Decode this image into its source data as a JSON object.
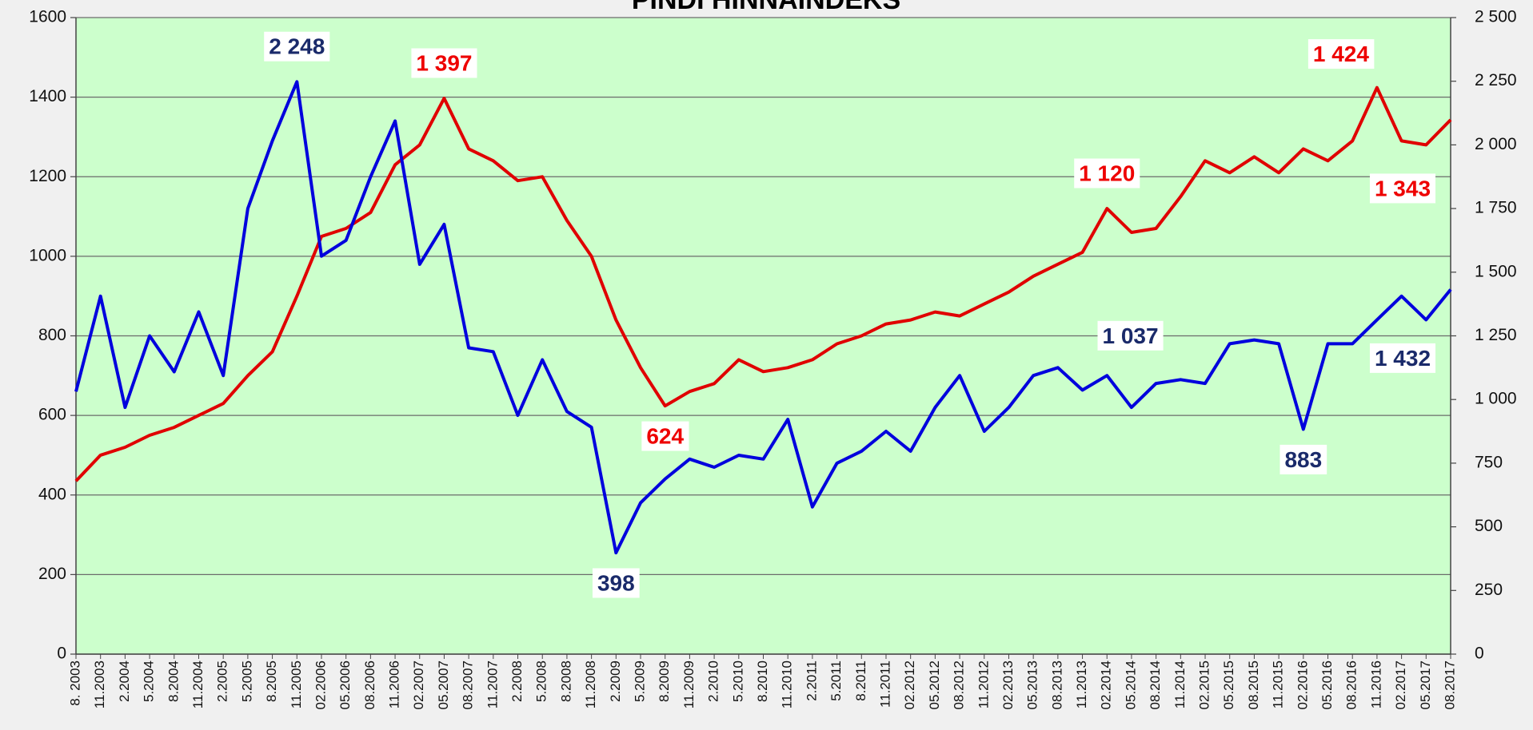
{
  "chart_data": {
    "type": "line",
    "title": "PINDI HINNAINDEKS",
    "categories": [
      "8. 2003",
      "11.2003",
      "2.2004",
      "5.2004",
      "8.2004",
      "11.2004",
      "2.2005",
      "5.2005",
      "8.2005",
      "11.2005",
      "02.2006",
      "05.2006",
      "08.2006",
      "11.2006",
      "02.2007",
      "05.2007",
      "08.2007",
      "11.2007",
      "2.2008",
      "5.2008",
      "8.2008",
      "11.2008",
      "2.2009",
      "5.2009",
      "8.2009",
      "11.2009",
      "2.2010",
      "5.2010",
      "8.2010",
      "11.2010",
      "2.2011",
      "5.2011",
      "8.2011",
      "11.2011",
      "02.2012",
      "05.2012",
      "08.2012",
      "11.2012",
      "02.2013",
      "05.2013",
      "08.2013",
      "11.2013",
      "02.2014",
      "05.2014",
      "08.2014",
      "11.2014",
      "02.2015",
      "05.2015",
      "08.2015",
      "11.2015",
      "02.2016",
      "05.2016",
      "08.2016",
      "11.2016",
      "02.2017",
      "05.2017",
      "08.2017"
    ],
    "series": [
      {
        "color": "#e00000",
        "axis": "y",
        "values": [
          435,
          500,
          520,
          550,
          570,
          600,
          630,
          700,
          760,
          900,
          1050,
          1070,
          1110,
          1230,
          1280,
          1397,
          1270,
          1240,
          1190,
          1200,
          1090,
          1000,
          840,
          720,
          624,
          660,
          680,
          740,
          710,
          720,
          740,
          780,
          800,
          830,
          840,
          860,
          850,
          880,
          910,
          950,
          980,
          1010,
          1120,
          1060,
          1070,
          1150,
          1240,
          1210,
          1250,
          1210,
          1270,
          1240,
          1290,
          1424,
          1290,
          1280,
          1343
        ]
      },
      {
        "color": "#0000dd",
        "axis": "y2",
        "values": [
          1031,
          1406,
          969,
          1250,
          1109,
          1344,
          1094,
          1750,
          2016,
          2248,
          1563,
          1625,
          1875,
          2094,
          1531,
          1688,
          1203,
          1188,
          938,
          1156,
          953,
          891,
          398,
          594,
          688,
          766,
          734,
          781,
          766,
          922,
          578,
          750,
          797,
          875,
          797,
          969,
          1094,
          875,
          969,
          1094,
          1125,
          1037,
          1094,
          969,
          1063,
          1078,
          1063,
          1219,
          1234,
          1219,
          883,
          1219,
          1219,
          1313,
          1406,
          1313,
          1432
        ]
      }
    ],
    "annotations": [
      {
        "text": "2 248",
        "series": 1,
        "index": 9,
        "position": "above"
      },
      {
        "text": "1 397",
        "series": 0,
        "index": 15,
        "position": "above"
      },
      {
        "text": "624",
        "series": 0,
        "index": 24,
        "position": "below"
      },
      {
        "text": "398",
        "series": 1,
        "index": 22,
        "position": "below"
      },
      {
        "text": "1 120",
        "series": 0,
        "index": 42,
        "position": "above"
      },
      {
        "text": "1 037",
        "series": 1,
        "index": 41,
        "position": "above-right"
      },
      {
        "text": "883",
        "series": 1,
        "index": 50,
        "position": "below"
      },
      {
        "text": "1 424",
        "series": 0,
        "index": 53,
        "position": "above-left"
      },
      {
        "text": "1 343",
        "series": 0,
        "index": 56,
        "position": "below-left"
      },
      {
        "text": "1 432",
        "series": 1,
        "index": 56,
        "position": "below-left"
      }
    ],
    "ylim": [
      0,
      1600
    ],
    "yticks": [
      0,
      200,
      400,
      600,
      800,
      1000,
      1200,
      1400,
      1600
    ],
    "y2lim": [
      0,
      2500
    ],
    "y2ticks": [
      0,
      250,
      500,
      750,
      {
        "value": 1000,
        "label": "1 000"
      },
      {
        "value": 1250,
        "label": "1 250"
      },
      {
        "value": 1500,
        "label": "1 500"
      },
      {
        "value": 1750,
        "label": "1 750"
      },
      {
        "value": 2000,
        "label": "2 000"
      },
      {
        "value": 2250,
        "label": "2 250"
      },
      {
        "value": 2500,
        "label": "2 500"
      }
    ],
    "grid": true
  }
}
